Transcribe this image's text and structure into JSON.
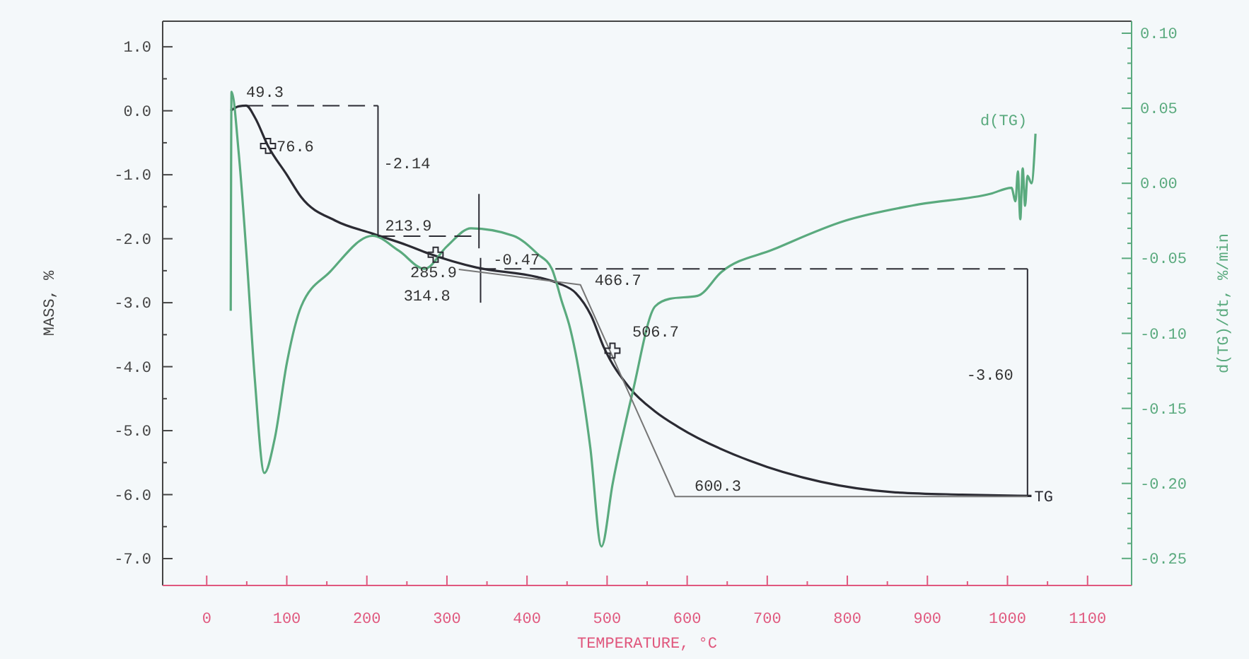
{
  "chart_data": {
    "type": "line",
    "xlabel": "TEMPERATURE, °C",
    "ylabel": "MASS, %",
    "y2label": "d(TG)/dt, %/min",
    "xlim": [
      -55,
      1155
    ],
    "xticks": [
      0,
      {
        "value": 50,
        "label": null
      },
      100,
      {
        "value": 150,
        "label": null
      },
      200,
      {
        "value": 250,
        "label": null
      },
      300,
      {
        "value": 350,
        "label": null
      },
      400,
      {
        "value": 450,
        "label": null
      },
      500,
      {
        "value": 550,
        "label": null
      },
      600,
      {
        "value": 650,
        "label": null
      },
      700,
      {
        "value": 750,
        "label": null
      },
      800,
      {
        "value": 850,
        "label": null
      },
      900,
      {
        "value": 950,
        "label": null
      },
      1000,
      {
        "value": 1050,
        "label": null
      },
      1100
    ],
    "ylim": [
      -7.42,
      1.4
    ],
    "yticks": [
      {
        "value": 1,
        "label": "1.0"
      },
      {
        "value": 0.5,
        "label": null
      },
      {
        "value": 0,
        "label": "0.0"
      },
      {
        "value": -0.5,
        "label": null
      },
      {
        "value": -1,
        "label": "-1.0"
      },
      {
        "value": -1.5,
        "label": null
      },
      {
        "value": -2,
        "label": "-2.0"
      },
      {
        "value": -2.5,
        "label": null
      },
      {
        "value": -3,
        "label": "-3.0"
      },
      {
        "value": -3.5,
        "label": null
      },
      {
        "value": -4,
        "label": "-4.0"
      },
      {
        "value": -4.5,
        "label": null
      },
      {
        "value": -5,
        "label": "-5.0"
      },
      {
        "value": -5.5,
        "label": null
      },
      {
        "value": -6,
        "label": "-6.0"
      },
      {
        "value": -6.5,
        "label": null
      },
      {
        "value": -7,
        "label": "-7.0"
      }
    ],
    "y2lim": [
      -0.268,
      0.108
    ],
    "y2ticks": [
      {
        "value": 0.1,
        "label": "0.10"
      },
      {
        "value": 0.09,
        "label": null
      },
      {
        "value": 0.08,
        "label": null
      },
      {
        "value": 0.07,
        "label": null
      },
      {
        "value": 0.06,
        "label": null
      },
      {
        "value": 0.05,
        "label": "0.05"
      },
      {
        "value": 0.04,
        "label": null
      },
      {
        "value": 0.03,
        "label": null
      },
      {
        "value": 0.02,
        "label": null
      },
      {
        "value": 0.01,
        "label": null
      },
      {
        "value": 0,
        "label": "0.00"
      },
      {
        "value": -0.01,
        "label": null
      },
      {
        "value": -0.02,
        "label": null
      },
      {
        "value": -0.03,
        "label": null
      },
      {
        "value": -0.04,
        "label": null
      },
      -0.05,
      {
        "value": -0.06,
        "label": null
      },
      {
        "value": -0.07,
        "label": null
      },
      {
        "value": -0.08,
        "label": null
      },
      {
        "value": -0.09,
        "label": null
      },
      {
        "value": -0.1,
        "label": "-0.10"
      },
      {
        "value": -0.11,
        "label": null
      },
      {
        "value": -0.12,
        "label": null
      },
      {
        "value": -0.13,
        "label": null
      },
      {
        "value": -0.14,
        "label": null
      },
      -0.15,
      {
        "value": -0.16,
        "label": null
      },
      {
        "value": -0.17,
        "label": null
      },
      {
        "value": -0.18,
        "label": null
      },
      {
        "value": -0.19,
        "label": null
      },
      {
        "value": -0.2,
        "label": "-0.20"
      },
      {
        "value": -0.21,
        "label": null
      },
      {
        "value": -0.22,
        "label": null
      },
      {
        "value": -0.23,
        "label": null
      },
      {
        "value": -0.24,
        "label": null
      },
      -0.25
    ],
    "grid": false,
    "legend": false,
    "series": [
      {
        "name": "TG",
        "color": "#2b2b33",
        "x": [
          30,
          40,
          49.3,
          60,
          76.6,
          100,
          118,
          161,
          207,
          250,
          277,
          337,
          413,
          440,
          461,
          480,
          496,
          528,
          560,
          590,
          678,
          767,
          855,
          943,
          1030
        ],
        "values": [
          0.0,
          0.07,
          0.08,
          -0.1,
          -0.55,
          -1.0,
          -1.35,
          -1.72,
          -1.92,
          -2.1,
          -2.23,
          -2.45,
          -2.6,
          -2.7,
          -2.85,
          -3.2,
          -3.7,
          -4.33,
          -4.7,
          -4.95,
          -5.47,
          -5.8,
          -5.96,
          -6.0,
          -6.02
        ]
      },
      {
        "name": "d(TG)",
        "color": "#5aaa7e",
        "axis": "y2",
        "x": [
          30,
          31,
          40,
          50,
          60,
          72,
          85,
          100,
          118,
          154,
          207,
          240,
          272,
          300,
          330,
          383,
          413,
          431,
          443,
          454,
          479,
          493,
          507,
          532,
          560,
          578,
          613,
          643,
          708,
          797,
          890,
          979,
          1005,
          1010,
          1013,
          1016,
          1019,
          1022,
          1025,
          1030,
          1035
        ],
        "values": [
          -0.085,
          0.061,
          0.02,
          -0.05,
          -0.13,
          -0.193,
          -0.17,
          -0.12,
          -0.082,
          -0.059,
          -0.035,
          -0.045,
          -0.057,
          -0.042,
          -0.03,
          -0.035,
          -0.047,
          -0.057,
          -0.078,
          -0.097,
          -0.176,
          -0.242,
          -0.2,
          -0.139,
          -0.082,
          -0.077,
          -0.075,
          -0.059,
          -0.044,
          -0.025,
          -0.014,
          -0.007,
          -0.003,
          -0.012,
          0.008,
          -0.024,
          0.01,
          -0.015,
          0.005,
          0.0,
          0.033
        ]
      },
      {
        "type": "line",
        "color": "#2b2b33",
        "line_style": "dashed",
        "x": [
          49.3,
          213.9
        ],
        "values": [
          0.08,
          0.08
        ]
      },
      {
        "type": "line",
        "color": "#2b2b33",
        "line_style": "dashed",
        "x": [
          213.9,
          340
        ],
        "values": [
          -1.96,
          -1.96
        ]
      },
      {
        "type": "line",
        "color": "#2b2b33",
        "line_style": "dashed",
        "x": [
          340,
          1025
        ],
        "values": [
          -2.47,
          -2.47
        ]
      },
      {
        "type": "line",
        "color": "#2b2b33",
        "line_style": "solid",
        "x": [
          213.9,
          213.9
        ],
        "values": [
          0.08,
          -1.96
        ]
      },
      {
        "type": "line",
        "color": "#2b2b33",
        "line_style": "solid",
        "x": [
          340,
          340
        ],
        "values": [
          -1.3,
          -2.15
        ]
      },
      {
        "type": "line",
        "color": "#2b2b33",
        "line_style": "solid",
        "x": [
          342,
          342
        ],
        "values": [
          -2.3,
          -3.0
        ]
      },
      {
        "type": "line",
        "color": "#2b2b33",
        "line_style": "solid",
        "x": [
          1025,
          1025
        ],
        "values": [
          -2.47,
          -6.03
        ]
      },
      {
        "type": "line",
        "color": "#777777",
        "line_style": "solid",
        "x": [
          314.8,
          466.7,
          585,
          1025
        ],
        "values": [
          -2.48,
          -2.72,
          -6.03,
          -6.03
        ]
      },
      {
        "type": "scatter",
        "color": "#2b2b33",
        "marker": "cross",
        "x": [
          76.6,
          285.9,
          506.7
        ],
        "values": [
          -0.55,
          -2.25,
          -3.75
        ]
      }
    ],
    "annotations": [
      {
        "text": "49.3",
        "x": 49.3,
        "y": 0.08
      },
      {
        "text": "76.6",
        "x": 76.6,
        "y": -0.55
      },
      {
        "text": "-2.14",
        "x": 213.9,
        "y": -0.9
      },
      {
        "text": "213.9",
        "x": 213.9,
        "y": -1.96
      },
      {
        "text": "285.9",
        "x": 285.9,
        "y": -2.25
      },
      {
        "text": "314.8",
        "x": 314.8,
        "y": -2.48
      },
      {
        "text": "-0.47",
        "x": 340,
        "y": -2.2
      },
      {
        "text": "466.7",
        "x": 466.7,
        "y": -2.72
      },
      {
        "text": "506.7",
        "x": 506.7,
        "y": -3.75
      },
      {
        "text": "600.3",
        "x": 600.3,
        "y": -6.03
      },
      {
        "text": "-3.60",
        "x": 1025,
        "y": -4.2
      }
    ]
  }
}
